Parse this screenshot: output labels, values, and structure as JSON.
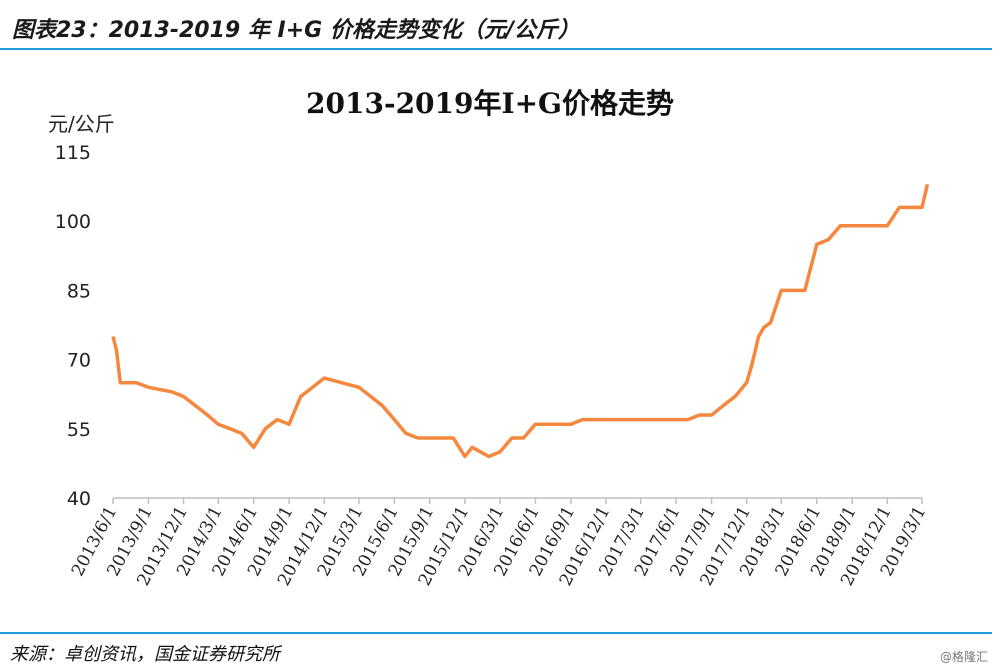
{
  "figure_title": "图表23：2013-2019 年 I+G 价格走势变化（元/公斤）",
  "source": "来源：卓创资讯，国金证券研究所",
  "watermark": "@格隆汇",
  "chart_data": {
    "type": "line",
    "title": "2013-2019年I+G价格走势",
    "ylabel": "元/公斤",
    "xlabel": "",
    "ylim": [
      40,
      115
    ],
    "yticks": [
      40,
      55,
      70,
      85,
      100,
      115
    ],
    "line_color": "#f5873f",
    "x_tick_labels": [
      "2013/6/1",
      "2013/9/1",
      "2013/12/1",
      "2014/3/1",
      "2014/6/1",
      "2014/9/1",
      "2014/12/1",
      "2015/3/1",
      "2015/6/1",
      "2015/9/1",
      "2015/12/1",
      "2016/3/1",
      "2016/6/1",
      "2016/9/1",
      "2016/12/1",
      "2017/3/1",
      "2017/6/1",
      "2017/9/1",
      "2017/12/1",
      "2018/3/1",
      "2018/6/1",
      "2018/9/1",
      "2018/12/1",
      "2019/3/1"
    ],
    "series": [
      {
        "values": [
          [
            "2013/6/1",
            75
          ],
          [
            "2013/6/10",
            72
          ],
          [
            "2013/6/20",
            65
          ],
          [
            "2013/8/1",
            65
          ],
          [
            "2013/9/1",
            64
          ],
          [
            "2013/11/1",
            63
          ],
          [
            "2013/12/1",
            62
          ],
          [
            "2014/1/1",
            60
          ],
          [
            "2014/2/1",
            58
          ],
          [
            "2014/3/1",
            56
          ],
          [
            "2014/4/1",
            55
          ],
          [
            "2014/5/1",
            54
          ],
          [
            "2014/6/1",
            51
          ],
          [
            "2014/7/1",
            55
          ],
          [
            "2014/8/1",
            57
          ],
          [
            "2014/9/1",
            56
          ],
          [
            "2014/10/1",
            62
          ],
          [
            "2014/11/1",
            64
          ],
          [
            "2014/12/1",
            66
          ],
          [
            "2015/1/15",
            65
          ],
          [
            "2015/3/1",
            64
          ],
          [
            "2015/4/1",
            62
          ],
          [
            "2015/5/1",
            60
          ],
          [
            "2015/6/1",
            57
          ],
          [
            "2015/7/1",
            54
          ],
          [
            "2015/8/1",
            53
          ],
          [
            "2015/9/1",
            53
          ],
          [
            "2015/11/1",
            53
          ],
          [
            "2015/12/1",
            49
          ],
          [
            "2015/12/20",
            51
          ],
          [
            "2016/2/1",
            49
          ],
          [
            "2016/3/1",
            50
          ],
          [
            "2016/4/1",
            53
          ],
          [
            "2016/5/1",
            53
          ],
          [
            "2016/6/1",
            56
          ],
          [
            "2016/9/1",
            56
          ],
          [
            "2016/10/1",
            57
          ],
          [
            "2017/3/1",
            57
          ],
          [
            "2017/7/1",
            57
          ],
          [
            "2017/8/1",
            58
          ],
          [
            "2017/9/1",
            58
          ],
          [
            "2017/10/1",
            60
          ],
          [
            "2017/11/1",
            62
          ],
          [
            "2017/12/1",
            65
          ],
          [
            "2017/12/15",
            69
          ],
          [
            "2018/1/1",
            75
          ],
          [
            "2018/1/15",
            77
          ],
          [
            "2018/2/1",
            78
          ],
          [
            "2018/3/1",
            85
          ],
          [
            "2018/5/1",
            85
          ],
          [
            "2018/6/1",
            95
          ],
          [
            "2018/7/1",
            96
          ],
          [
            "2018/8/1",
            99
          ],
          [
            "2018/12/1",
            99
          ],
          [
            "2019/1/1",
            103
          ],
          [
            "2019/3/1",
            103
          ],
          [
            "2019/3/15",
            108
          ]
        ]
      }
    ]
  }
}
